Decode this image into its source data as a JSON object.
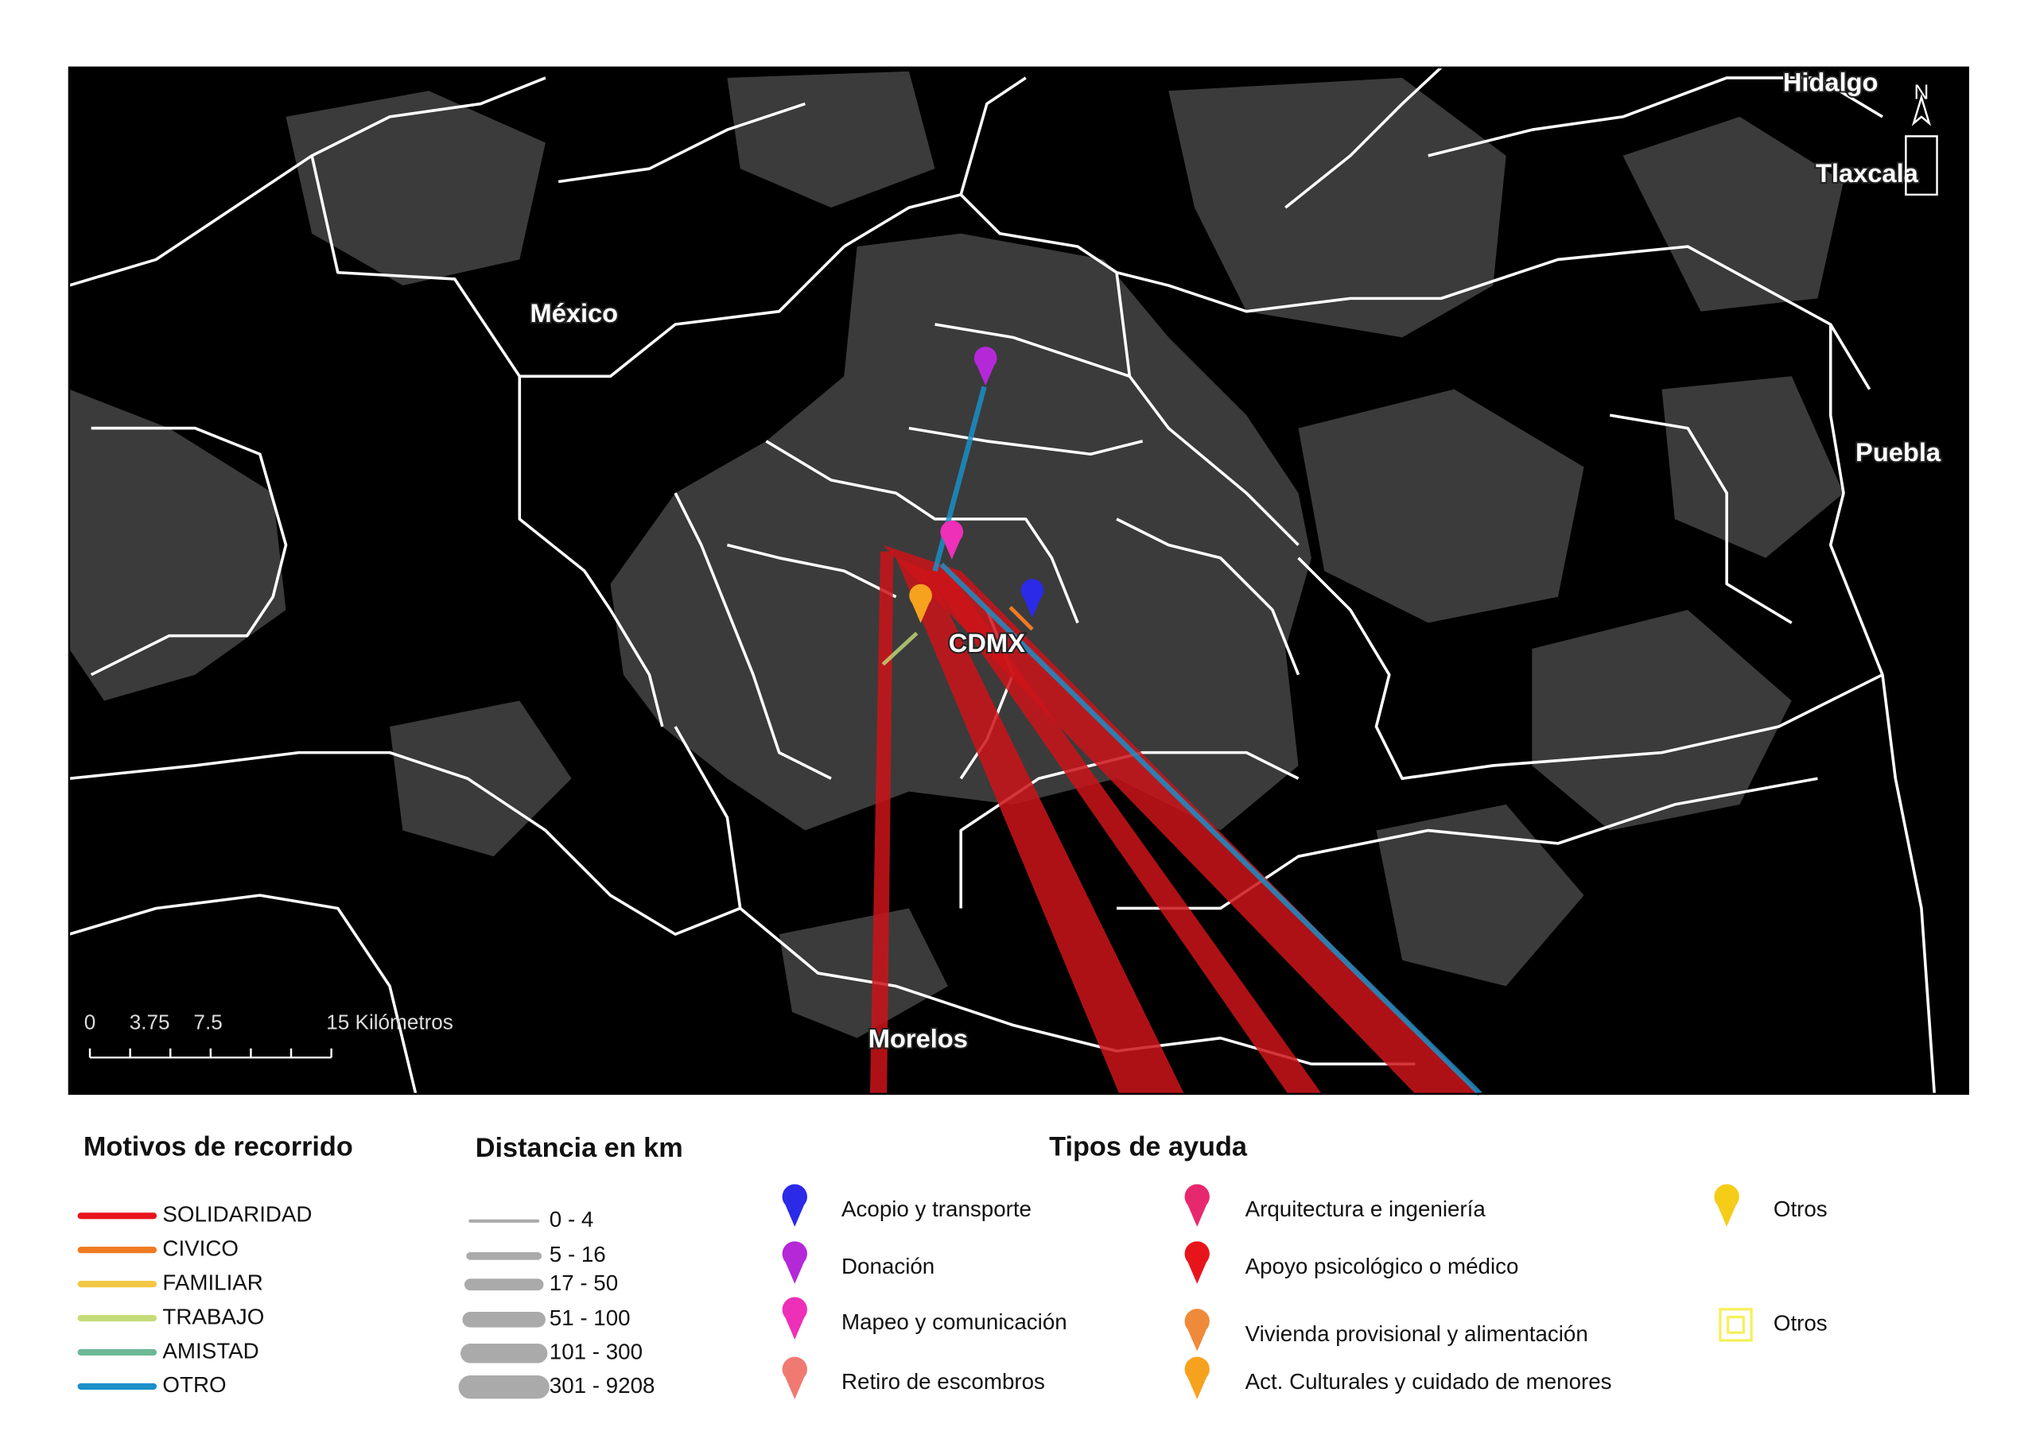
{
  "map": {
    "labels": [
      "Hidalgo",
      "Tlaxcala",
      "México",
      "Puebla",
      "CDMX",
      "Morelos"
    ],
    "north": "N",
    "scale": [
      "0",
      "3.75",
      "7.5",
      "15 Kilómetros"
    ]
  },
  "legend": {
    "motivos": {
      "title": "Motivos de recorrido",
      "items": [
        {
          "label": "SOLIDARIDAD",
          "color": "#e8141b"
        },
        {
          "label": "CIVICO",
          "color": "#f07a22"
        },
        {
          "label": "FAMILIAR",
          "color": "#f2c744"
        },
        {
          "label": "TRABAJO",
          "color": "#c5dc7a"
        },
        {
          "label": "AMISTAD",
          "color": "#6db896"
        },
        {
          "label": "OTRO",
          "color": "#1a8fc8"
        }
      ]
    },
    "distancia": {
      "title": "Distancia en km",
      "items": [
        "0 - 4",
        "5 - 16",
        "17 - 50",
        "51 - 100",
        "101 - 300",
        "301 - 9208"
      ]
    },
    "tipos": {
      "title": "Tipos de ayuda",
      "items": [
        {
          "label": "Acopio y transporte",
          "color": "#2a2ae8"
        },
        {
          "label": "Donación",
          "color": "#b428d8"
        },
        {
          "label": "Mapeo y comunicación",
          "color": "#ee2fb8"
        },
        {
          "label": "Retiro de escombros",
          "color": "#f07a72"
        },
        {
          "label": "Arquitectura e ingeniería",
          "color": "#e8286e"
        },
        {
          "label": "Apoyo psicológico o médico",
          "color": "#e8141b"
        },
        {
          "label": "Vivienda provisional y alimentación",
          "color": "#ef8a3a"
        },
        {
          "label": "Act. Culturales y cuidado de menores",
          "color": "#f7a21f"
        },
        {
          "label": "Otros",
          "color": "#f5cc18"
        },
        {
          "label": "Otros",
          "color": "#f5f05a"
        }
      ]
    }
  }
}
